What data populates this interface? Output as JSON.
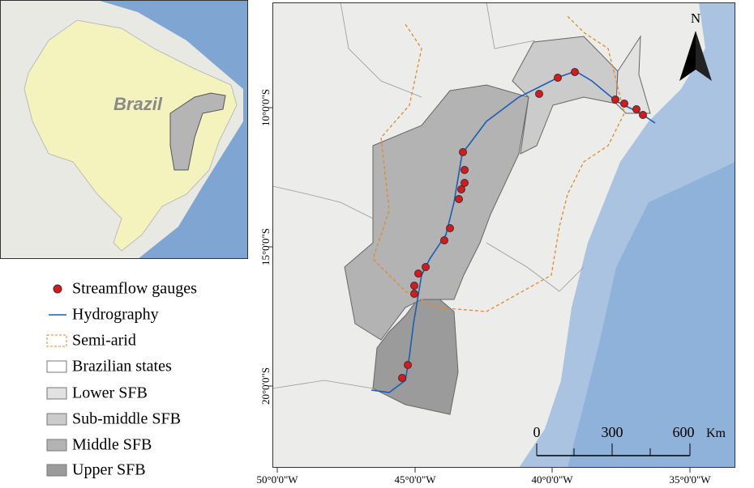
{
  "inset": {
    "label": "Brazil"
  },
  "north_arrow": {
    "label": "N"
  },
  "legend": {
    "items": [
      "Streamflow gauges",
      "Hydrography",
      "Semi-arid",
      "Brazilian states",
      "Lower SFB",
      "Sub-middle SFB",
      "Middle SFB",
      "Upper SFB"
    ]
  },
  "grid_labels": {
    "x": [
      "50°0'0\"W",
      "45°0'0\"W",
      "40°0'0\"W",
      "35°0'0\"W"
    ],
    "y": [
      "10°0'0\"S",
      "15°0'0\"S",
      "20°0'0\"S"
    ]
  },
  "scale_bar": {
    "labels": [
      "0",
      "300",
      "600"
    ],
    "unit": "Km"
  }
}
